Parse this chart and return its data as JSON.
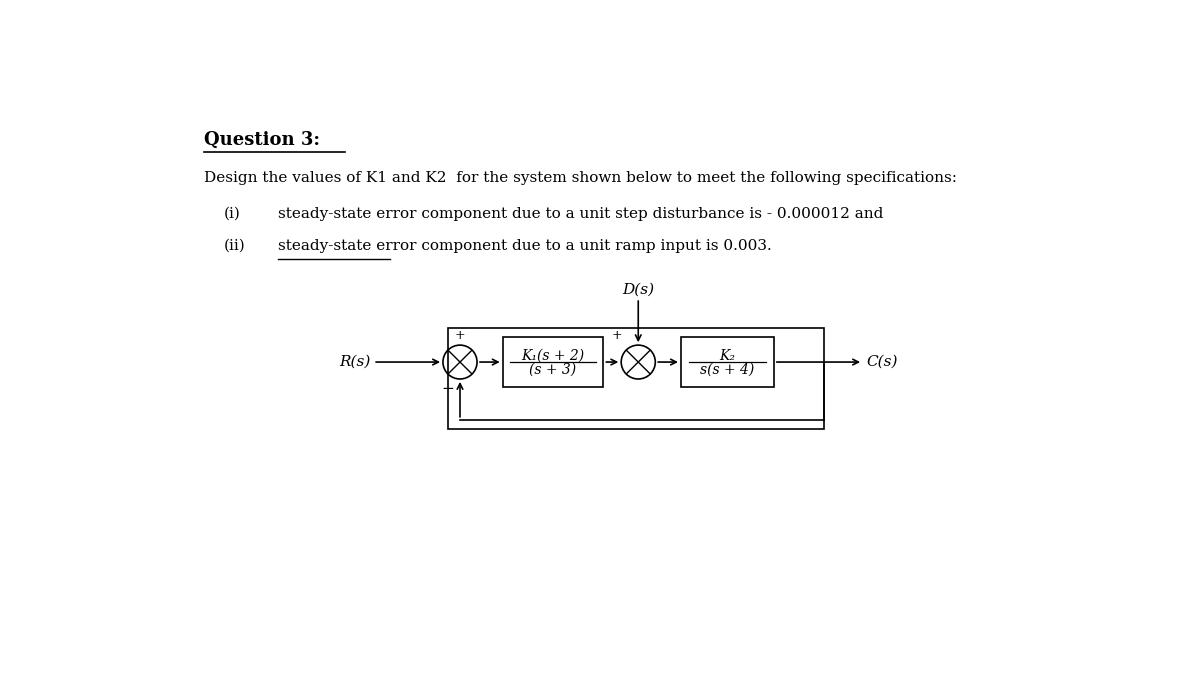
{
  "title": "Question 3:",
  "main_text": "Design the values of K1 and K2  for the system shown below to meet the following specifications:",
  "item_i_num": "(i)",
  "item_i_txt": "steady-state error component due to a unit step disturbance is - 0.000012 and",
  "item_ii_num": "(ii)",
  "item_ii_txt": "steady-state error component due to a unit ramp input is 0.003.",
  "block1_top": "K₁(s + 2)",
  "block1_bot": "(s + 3)",
  "block2_top": "K₂",
  "block2_bot": "s(s + 4)",
  "label_Rs": "R(s)",
  "label_Cs": "C(s)",
  "label_Ds": "D(s)",
  "bg_color": "#ffffff",
  "text_color": "#000000",
  "plus": "+",
  "minus": "−"
}
